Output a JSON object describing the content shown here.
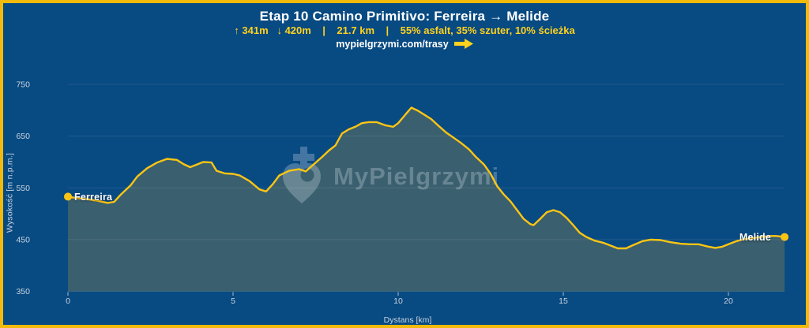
{
  "frame": {
    "background_color": "#084a82",
    "border_color": "#f4ba0b"
  },
  "header": {
    "title": "Etap 10 Camino Primitivo: Ferreira → Melide",
    "stats": "↑ 341m   ↓ 420m    |    21.7 km    |    55% asfalt, 35% szuter, 10% ścieżka",
    "link": "mypielgrzymi.com/trasy",
    "accent_color": "#ffd21e"
  },
  "watermark": {
    "text": "MyPielgrzymi",
    "logo": "heart-cross",
    "color": "#cfdde8"
  },
  "chart_data": {
    "type": "area",
    "title": "",
    "xlabel": "Dystans [km]",
    "ylabel": "Wysokość [m n.p.m.]",
    "xlim": [
      0,
      21.7
    ],
    "ylim": [
      350,
      750
    ],
    "xticks": [
      0,
      5,
      10,
      15,
      20
    ],
    "yticks": [
      350,
      450,
      550,
      650,
      750
    ],
    "grid": "horizontal",
    "line_color": "#fdc513",
    "fill_color": "#3a5f6e",
    "grid_color": "rgba(255,255,255,0.10)",
    "axis_text_color": "#c9d4df",
    "marker_color": "#fdc513",
    "start_label": "Ferreira",
    "end_label": "Melide",
    "start_elevation_m": 533,
    "end_elevation_m": 455,
    "max_elevation_m": 705,
    "series": [
      {
        "name": "Wysokość",
        "x": [
          0,
          0.3,
          0.6,
          0.9,
          1.2,
          1.4,
          1.6,
          1.9,
          2.1,
          2.4,
          2.7,
          3.0,
          3.3,
          3.5,
          3.7,
          3.9,
          4.1,
          4.35,
          4.5,
          4.75,
          5.0,
          5.2,
          5.5,
          5.8,
          6.0,
          6.2,
          6.4,
          6.7,
          7.0,
          7.2,
          7.45,
          7.7,
          7.9,
          8.1,
          8.3,
          8.5,
          8.7,
          8.9,
          9.1,
          9.35,
          9.6,
          9.85,
          10.0,
          10.25,
          10.4,
          10.6,
          10.8,
          11.0,
          11.2,
          11.45,
          11.7,
          11.9,
          12.15,
          12.35,
          12.6,
          12.8,
          13.0,
          13.2,
          13.4,
          13.6,
          13.8,
          14.0,
          14.1,
          14.3,
          14.5,
          14.7,
          14.9,
          15.1,
          15.3,
          15.5,
          15.7,
          15.95,
          16.2,
          16.45,
          16.65,
          16.9,
          17.1,
          17.4,
          17.65,
          17.95,
          18.25,
          18.55,
          18.85,
          19.1,
          19.35,
          19.6,
          19.8,
          20.0,
          20.25,
          20.5,
          20.75,
          21.0,
          21.25,
          21.45,
          21.7
        ],
        "y": [
          533,
          530,
          528,
          525,
          521,
          523,
          537,
          555,
          572,
          588,
          599,
          606,
          604,
          596,
          590,
          595,
          600,
          599,
          583,
          578,
          577,
          574,
          563,
          547,
          543,
          557,
          574,
          583,
          586,
          582,
          596,
          610,
          622,
          632,
          655,
          663,
          668,
          675,
          677,
          677,
          671,
          668,
          675,
          694,
          705,
          699,
          691,
          683,
          671,
          657,
          646,
          637,
          624,
          610,
          595,
          577,
          553,
          537,
          524,
          507,
          490,
          480,
          478,
          490,
          503,
          507,
          503,
          492,
          478,
          463,
          455,
          448,
          444,
          438,
          433,
          433,
          439,
          447,
          450,
          449,
          445,
          442,
          441,
          441,
          437,
          434,
          436,
          441,
          447,
          451,
          453,
          455,
          457,
          457,
          455
        ]
      }
    ]
  }
}
